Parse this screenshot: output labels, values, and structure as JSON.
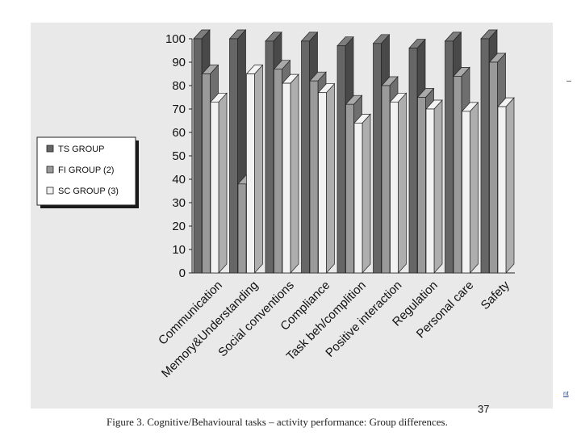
{
  "page": {
    "number": "37",
    "caption": "Figure 3. Cognitive/Behavioural tasks – activity performance: Group differences.",
    "edge_fragment": "nt"
  },
  "colors": {
    "panel": "#e9e9e9",
    "ts": "#666666",
    "fi": "#9a9a9a",
    "sc": "#f2f2f2"
  },
  "chart_data": {
    "type": "bar",
    "style": "3d-grouped",
    "title": "",
    "xlabel": "",
    "ylabel": "",
    "ylim": [
      0,
      100
    ],
    "yticks": [
      0,
      10,
      20,
      30,
      40,
      50,
      60,
      70,
      80,
      90,
      100
    ],
    "grid": false,
    "legend_position": "left",
    "categories": [
      "Communication",
      "Memory&Understanding",
      "Social conventions",
      "Compliance",
      "Task beh/complition",
      "Positive interaction",
      "Regulation",
      "Personal care",
      "Safety"
    ],
    "series": [
      {
        "name": "TS GROUP",
        "values": [
          100,
          100,
          99,
          99,
          97,
          98,
          96,
          99,
          100
        ]
      },
      {
        "name": "FI GROUP (2)",
        "values": [
          85,
          38,
          87,
          82,
          72,
          80,
          75,
          84,
          90
        ]
      },
      {
        "name": "SC GROUP (3)",
        "values": [
          73,
          85,
          81,
          77,
          64,
          73,
          70,
          69,
          71
        ]
      }
    ]
  }
}
